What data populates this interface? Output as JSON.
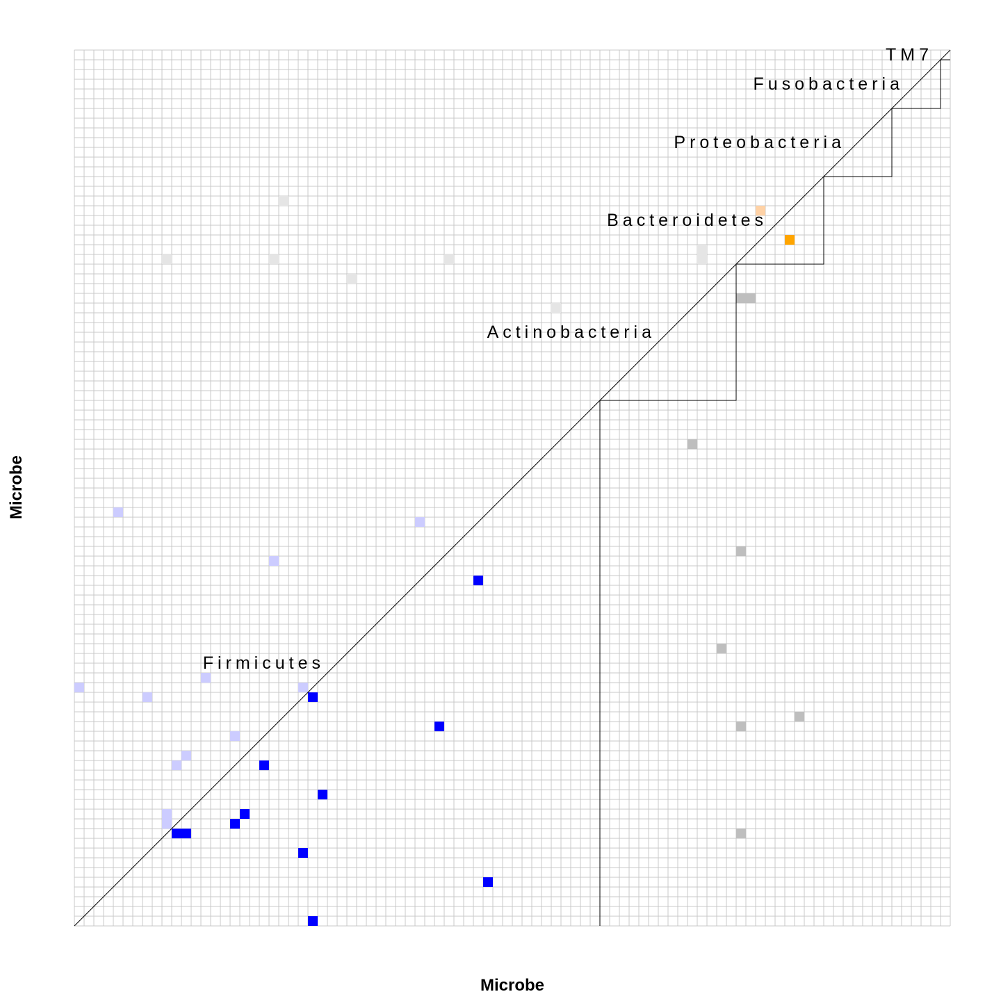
{
  "chart_data": {
    "type": "heatmap",
    "x_label": "Microbe",
    "y_label": "Microbe",
    "groups": [
      {
        "name": "Firmicutes",
        "size": 54
      },
      {
        "name": "Actinobacteria",
        "size": 14
      },
      {
        "name": "Bacteroidetes",
        "size": 9
      },
      {
        "name": "Proteobacteria",
        "size": 7
      },
      {
        "name": "Fusobacteria",
        "size": 5
      },
      {
        "name": "TM7",
        "size": 1
      }
    ],
    "cells": [
      {
        "col": 24,
        "row": 66,
        "color": "#0000ff"
      },
      {
        "col": 37,
        "row": 69,
        "color": "#0000ff"
      },
      {
        "col": 41,
        "row": 54,
        "color": "#0000ff"
      },
      {
        "col": 19,
        "row": 73,
        "color": "#0000ff"
      },
      {
        "col": 25,
        "row": 76,
        "color": "#0000ff"
      },
      {
        "col": 17,
        "row": 78,
        "color": "#0000ff"
      },
      {
        "col": 16,
        "row": 79,
        "color": "#0000ff"
      },
      {
        "col": 10,
        "row": 80,
        "color": "#0000ff"
      },
      {
        "col": 11,
        "row": 80,
        "color": "#0000ff"
      },
      {
        "col": 23,
        "row": 82,
        "color": "#0000ff"
      },
      {
        "col": 42,
        "row": 85,
        "color": "#0000ff"
      },
      {
        "col": 24,
        "row": 89,
        "color": "#0000ff"
      },
      {
        "col": 4,
        "row": 47,
        "color": "#ccccff"
      },
      {
        "col": 35,
        "row": 48,
        "color": "#ccccff"
      },
      {
        "col": 20,
        "row": 52,
        "color": "#ccccff"
      },
      {
        "col": 0,
        "row": 65,
        "color": "#ccccff"
      },
      {
        "col": 13,
        "row": 64,
        "color": "#ccccff"
      },
      {
        "col": 7,
        "row": 66,
        "color": "#ccccff"
      },
      {
        "col": 23,
        "row": 65,
        "color": "#ccccff"
      },
      {
        "col": 16,
        "row": 70,
        "color": "#ccccff"
      },
      {
        "col": 11,
        "row": 72,
        "color": "#ccccff"
      },
      {
        "col": 10,
        "row": 73,
        "color": "#ccccff"
      },
      {
        "col": 9,
        "row": 78,
        "color": "#ccccff"
      },
      {
        "col": 9,
        "row": 79,
        "color": "#ccccff"
      },
      {
        "col": 63,
        "row": 40,
        "color": "#bebebe"
      },
      {
        "col": 68,
        "row": 51,
        "color": "#bebebe"
      },
      {
        "col": 66,
        "row": 61,
        "color": "#bebebe"
      },
      {
        "col": 74,
        "row": 68,
        "color": "#bebebe"
      },
      {
        "col": 68,
        "row": 69,
        "color": "#bebebe"
      },
      {
        "col": 68,
        "row": 80,
        "color": "#bebebe"
      },
      {
        "col": 68,
        "row": 25,
        "color": "#bebebe"
      },
      {
        "col": 69,
        "row": 25,
        "color": "#bebebe"
      },
      {
        "col": 49,
        "row": 26,
        "color": "#e5e5e5"
      },
      {
        "col": 38,
        "row": 21,
        "color": "#e5e5e5"
      },
      {
        "col": 28,
        "row": 23,
        "color": "#e5e5e5"
      },
      {
        "col": 21,
        "row": 15,
        "color": "#e5e5e5"
      },
      {
        "col": 20,
        "row": 21,
        "color": "#e5e5e5"
      },
      {
        "col": 9,
        "row": 21,
        "color": "#e5e5e5"
      },
      {
        "col": 64,
        "row": 21,
        "color": "#e5e5e5"
      },
      {
        "col": 64,
        "row": 20,
        "color": "#e5e5e5"
      },
      {
        "col": 73,
        "row": 19,
        "color": "#ffa500"
      },
      {
        "col": 70,
        "row": 16,
        "color": "#ffd2a6"
      }
    ]
  }
}
